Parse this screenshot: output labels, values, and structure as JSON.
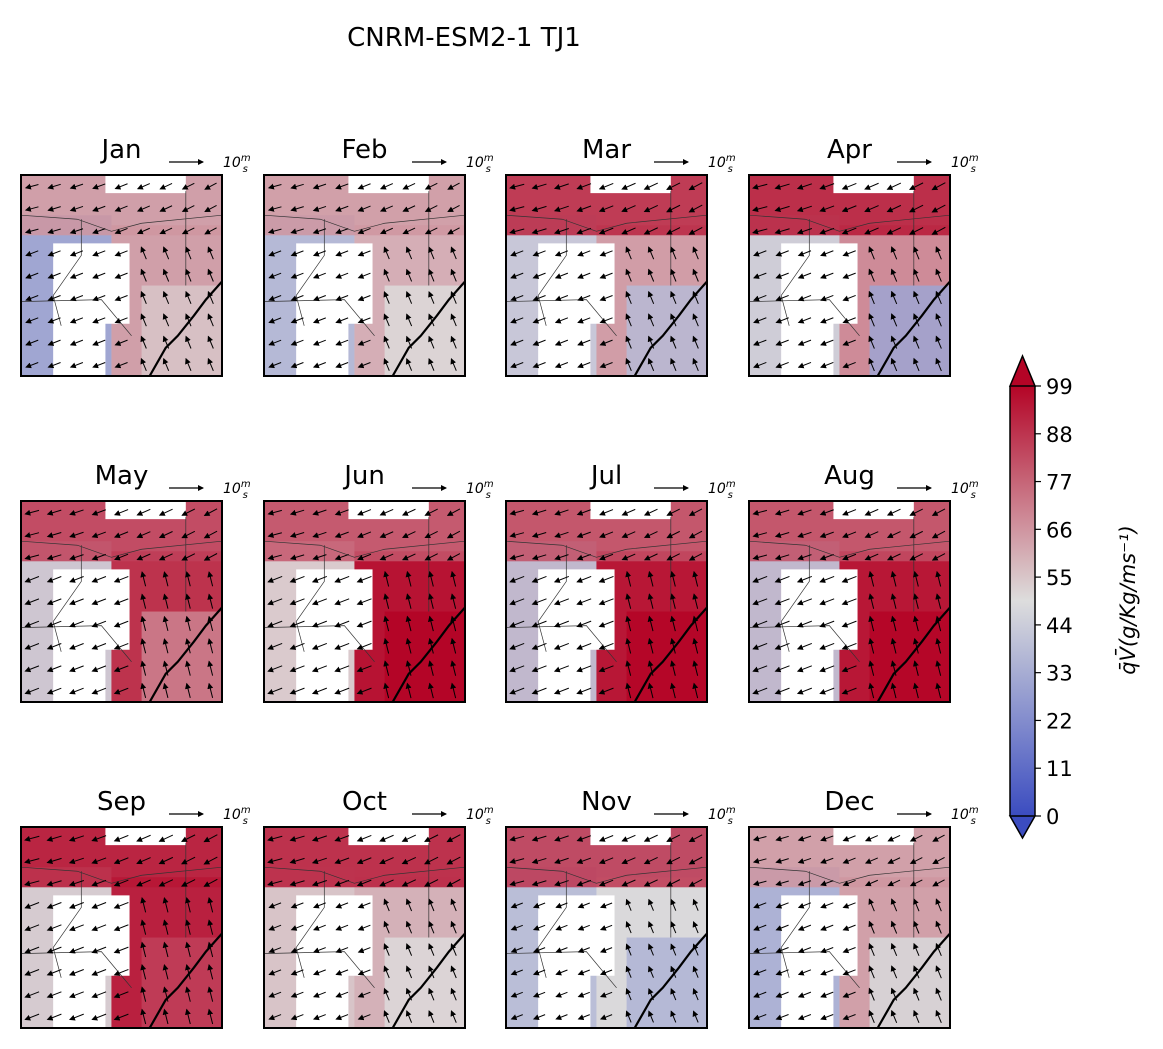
{
  "title": "CNRM-ESM2-1 TJ1",
  "chart_data": {
    "type": "heatmap",
    "title": "CNRM-ESM2-1 TJ1",
    "panels": [
      "Jan",
      "Feb",
      "Mar",
      "Apr",
      "May",
      "Jun",
      "Jul",
      "Aug",
      "Sep",
      "Oct",
      "Nov",
      "Dec"
    ],
    "quiver_reference": {
      "value": 10,
      "label": "10",
      "unit_num": "m",
      "unit_den": "s"
    },
    "colorbar": {
      "label": "q̄V̄(g/Kg/ms⁻¹)",
      "ticks": [
        0,
        11,
        22,
        33,
        44,
        55,
        66,
        77,
        88,
        99
      ],
      "range": [
        0,
        99
      ],
      "extend": "both",
      "colormap": "coolwarm",
      "colors": {
        "low": "#3b4cc0",
        "mid": "#dddddd",
        "high": "#b40426"
      }
    },
    "panel_field_levels": {
      "Jan": {
        "north_band": 66,
        "west": 28,
        "east": 66,
        "southeast": 55
      },
      "Feb": {
        "north_band": 66,
        "west": 35,
        "east": 62,
        "southeast": 50
      },
      "Mar": {
        "north_band": 92,
        "west": 42,
        "east": 66,
        "southeast": 38
      },
      "Apr": {
        "north_band": 95,
        "west": 45,
        "east": 70,
        "southeast": 30
      },
      "May": {
        "north_band": 85,
        "west": 45,
        "east": 92,
        "southeast": 70
      },
      "Jun": {
        "north_band": 80,
        "west": 50,
        "east": 99,
        "southeast": 99
      },
      "Jul": {
        "north_band": 82,
        "west": 40,
        "east": 99,
        "southeast": 99
      },
      "Aug": {
        "north_band": 82,
        "west": 40,
        "east": 99,
        "southeast": 99
      },
      "Sep": {
        "north_band": 95,
        "west": 48,
        "east": 96,
        "southeast": 85
      },
      "Oct": {
        "north_band": 94,
        "west": 55,
        "east": 60,
        "southeast": 50
      },
      "Nov": {
        "north_band": 88,
        "west": 38,
        "east": 50,
        "southeast": 35
      },
      "Dec": {
        "north_band": 66,
        "west": 32,
        "east": 66,
        "southeast": 48
      }
    }
  }
}
